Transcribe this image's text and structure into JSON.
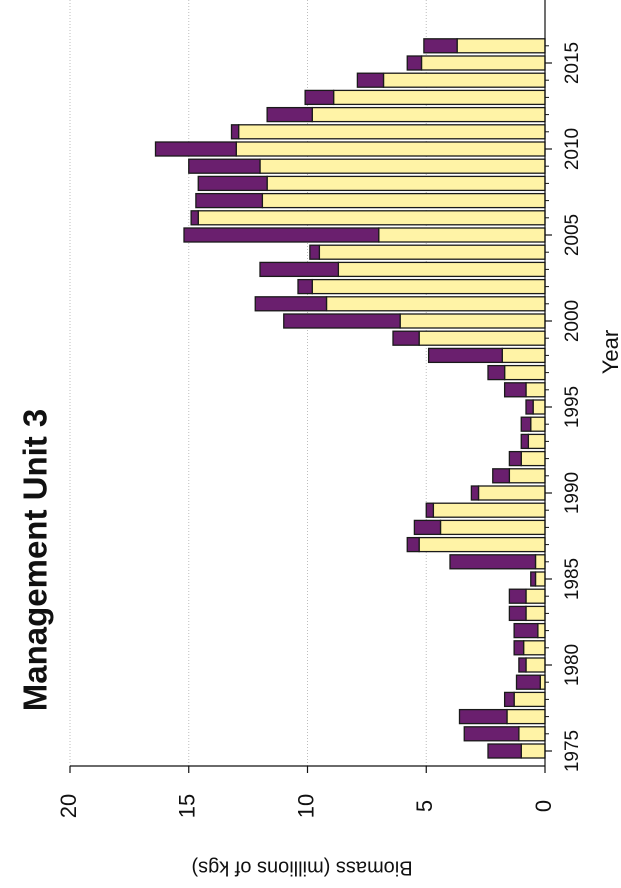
{
  "chart_data": {
    "type": "bar",
    "stacked": true,
    "orientation": "rotated-90-clockwise",
    "title": "Management Unit 3",
    "xlabel": "Year",
    "ylabel": "Biomass (millions of kgs)",
    "ylim": [
      0,
      20
    ],
    "yticks": [
      "0",
      "5",
      "10",
      "15",
      "20"
    ],
    "xticks": [
      "1975",
      "1980",
      "1985",
      "1990",
      "1995",
      "2000",
      "2005",
      "2010",
      "2015"
    ],
    "grid": true,
    "categories": [
      1975,
      1976,
      1977,
      1978,
      1979,
      1980,
      1981,
      1982,
      1983,
      1984,
      1985,
      1986,
      1987,
      1988,
      1989,
      1990,
      1991,
      1992,
      1993,
      1994,
      1995,
      1996,
      1997,
      1998,
      1999,
      2000,
      2001,
      2002,
      2003,
      2004,
      2005,
      2006,
      2007,
      2008,
      2009,
      2010,
      2011,
      2012,
      2013,
      2014,
      2015,
      2016
    ],
    "series": [
      {
        "color": "#fff3a6",
        "values": [
          1.0,
          1.1,
          1.6,
          1.3,
          0.2,
          0.8,
          0.9,
          0.3,
          0.8,
          0.8,
          0.4,
          0.4,
          5.3,
          4.4,
          4.7,
          2.8,
          1.5,
          1.0,
          0.7,
          0.6,
          0.5,
          0.8,
          1.7,
          1.8,
          5.3,
          6.1,
          9.2,
          9.8,
          8.7,
          9.5,
          7.0,
          14.6,
          11.9,
          11.7,
          12.0,
          13.0,
          12.9,
          9.8,
          8.9,
          6.8,
          5.2,
          3.7
        ]
      },
      {
        "color": "#6a1f6e",
        "values": [
          1.4,
          2.3,
          2.0,
          0.4,
          1.0,
          0.3,
          0.4,
          1.0,
          0.7,
          0.7,
          0.2,
          3.6,
          0.5,
          1.1,
          0.3,
          0.3,
          0.7,
          0.5,
          0.3,
          0.4,
          0.3,
          0.9,
          0.7,
          3.1,
          1.1,
          4.9,
          3.0,
          0.6,
          3.3,
          0.4,
          8.2,
          0.3,
          2.8,
          2.9,
          3.0,
          3.4,
          0.3,
          1.9,
          1.2,
          1.1,
          0.6,
          1.4
        ]
      }
    ]
  }
}
